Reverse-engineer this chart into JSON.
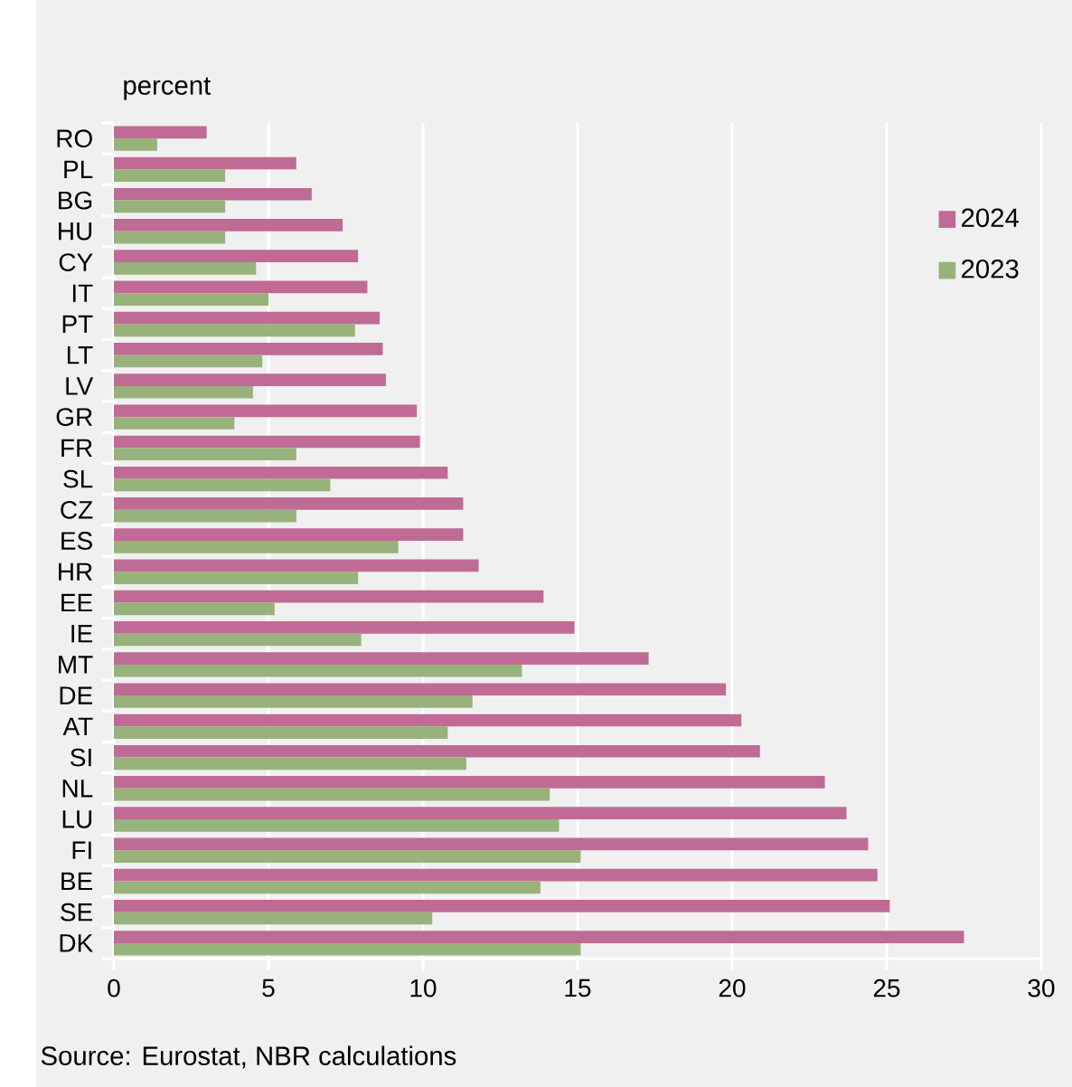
{
  "chart_data": {
    "type": "bar",
    "orientation": "horizontal",
    "xlabel": "percent",
    "categories": [
      "RO",
      "PL",
      "BG",
      "HU",
      "CY",
      "IT",
      "PT",
      "LT",
      "LV",
      "GR",
      "FR",
      "SL",
      "CZ",
      "ES",
      "HR",
      "EE",
      "IE",
      "MT",
      "DE",
      "AT",
      "SI",
      "NL",
      "LU",
      "FI",
      "BE",
      "SE",
      "DK"
    ],
    "series": [
      {
        "name": "2024",
        "color": "#bf6b95",
        "values": [
          3.0,
          5.9,
          6.4,
          7.4,
          7.9,
          8.2,
          8.6,
          8.7,
          8.8,
          9.8,
          9.9,
          10.8,
          11.3,
          11.3,
          11.8,
          13.9,
          14.9,
          17.3,
          19.8,
          20.3,
          20.9,
          23.0,
          23.7,
          24.4,
          24.7,
          25.1,
          27.5
        ]
      },
      {
        "name": "2023",
        "color": "#97b27a",
        "values": [
          1.4,
          3.6,
          3.6,
          3.6,
          4.6,
          5.0,
          7.8,
          4.8,
          4.5,
          3.9,
          5.9,
          7.0,
          5.9,
          9.2,
          7.9,
          5.2,
          8.0,
          13.2,
          11.6,
          10.8,
          11.4,
          14.1,
          14.4,
          15.1,
          13.8,
          10.3,
          15.1
        ]
      }
    ],
    "xlim": [
      0,
      30
    ],
    "xticks": [
      0,
      5,
      10,
      15,
      20,
      25,
      30
    ],
    "grid": "x",
    "legend": "top right",
    "annotations": [
      "Source: Eurostat, NBR calculations"
    ]
  }
}
